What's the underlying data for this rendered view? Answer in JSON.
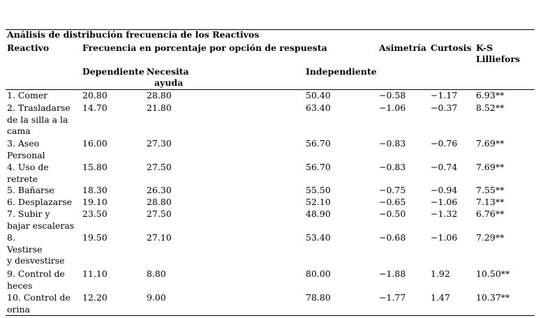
{
  "table": {
    "title": "Análisis de distribución frecuencia de los Reactivos",
    "header": {
      "reactivo": "Reactivo",
      "frecuencia": "Frecuencia en porcentaje por opción de respuesta",
      "asimetria": "Asimetría",
      "curtosis": "Curtosis",
      "ks": [
        "K-S",
        "Lilliefors"
      ],
      "dependiente": "Dependiente",
      "necesita": [
        "Necesita",
        "ayuda"
      ],
      "independiente": "Independiente"
    },
    "rows": [
      [
        [
          "1. Comer"
        ],
        "20.80",
        "28.80",
        "50.40",
        "−0.58",
        "−1.17",
        "6.93**"
      ],
      [
        [
          "2. Trasladarse",
          "de la silla a la",
          "cama"
        ],
        "14.70",
        "21.80",
        "63.40",
        "−1.06",
        "−0.37",
        "8.52**"
      ],
      [
        [
          "3. Aseo",
          "Personal"
        ],
        "16.00",
        "27.30",
        "56.70",
        "−0.83",
        "−0.76",
        "7.69**"
      ],
      [
        [
          "4. Uso de",
          "retrete"
        ],
        "15.80",
        "27.50",
        "56.70",
        "−0.83",
        "−0.74",
        "7.69**"
      ],
      [
        [
          "5. Bañarse"
        ],
        "18.30",
        "26.30",
        "55.50",
        "−0.75",
        "−0.94",
        "7.55**"
      ],
      [
        [
          "6. Desplazarse"
        ],
        "19.10",
        "28.80",
        "52.10",
        "−0.65",
        "−1.06",
        "7.13**"
      ],
      [
        [
          "7. Subir y",
          "bajar escaleras"
        ],
        "23.50",
        "27.50",
        "48.90",
        "−0.50",
        "−1.32",
        "6.76**"
      ],
      [
        [
          "8.",
          "Vestirse",
          "y desvestirse"
        ],
        "19.50",
        "27.10",
        "53.40",
        "−0.68",
        "−1.06",
        "7.29**"
      ],
      [
        [
          "9. Control de",
          "heces"
        ],
        "11.10",
        "8.80",
        "80.00",
        "−1.88",
        "1.92",
        "10.50**"
      ],
      [
        [
          "10. Control de",
          "orina"
        ],
        "12.20",
        "9.00",
        "78.80",
        "−1.77",
        "1.47",
        "10.37**"
      ]
    ]
  }
}
